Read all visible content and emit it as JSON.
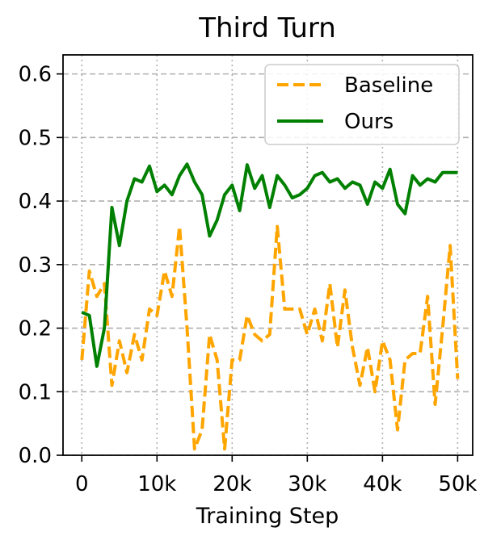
{
  "chart_data": {
    "type": "line",
    "title": "Third Turn",
    "xlabel": "Training Step",
    "ylabel": "",
    "xlim": [
      -2500,
      52000
    ],
    "ylim": [
      0.0,
      0.63
    ],
    "xticks": [
      0,
      10000,
      20000,
      30000,
      40000,
      50000
    ],
    "xtick_labels": [
      "0",
      "10k",
      "20k",
      "30k",
      "40k",
      "50k"
    ],
    "yticks": [
      0.0,
      0.1,
      0.2,
      0.3,
      0.4,
      0.5,
      0.6
    ],
    "ytick_labels": [
      "0.0",
      "0.1",
      "0.2",
      "0.3",
      "0.4",
      "0.5",
      "0.6"
    ],
    "grid": {
      "y": "dashed",
      "x": "dotted"
    },
    "legend": {
      "placement": "top-right"
    },
    "x": [
      0,
      1000,
      2000,
      3000,
      4000,
      5000,
      6000,
      7000,
      8000,
      9000,
      10000,
      11000,
      12000,
      13000,
      14000,
      15000,
      16000,
      17000,
      18000,
      19000,
      20000,
      21000,
      22000,
      23000,
      24000,
      25000,
      26000,
      27000,
      28000,
      29000,
      30000,
      31000,
      32000,
      33000,
      34000,
      35000,
      36000,
      37000,
      38000,
      39000,
      40000,
      41000,
      42000,
      43000,
      44000,
      45000,
      46000,
      47000,
      48000,
      49000,
      50000
    ],
    "series": [
      {
        "name": "Baseline",
        "style": "dashed",
        "color": "#FFA500",
        "values": [
          0.15,
          0.29,
          0.25,
          0.27,
          0.11,
          0.18,
          0.13,
          0.19,
          0.15,
          0.23,
          0.22,
          0.29,
          0.25,
          0.36,
          0.2,
          0.01,
          0.04,
          0.19,
          0.15,
          0.01,
          0.15,
          0.15,
          0.22,
          0.19,
          0.18,
          0.19,
          0.36,
          0.23,
          0.23,
          0.23,
          0.19,
          0.23,
          0.18,
          0.27,
          0.17,
          0.26,
          0.17,
          0.11,
          0.17,
          0.1,
          0.18,
          0.15,
          0.04,
          0.15,
          0.16,
          0.16,
          0.25,
          0.08,
          0.2,
          0.33,
          0.12
        ]
      },
      {
        "name": "Ours",
        "style": "solid",
        "color": "#008000",
        "values": [
          0.225,
          0.22,
          0.14,
          0.2,
          0.39,
          0.33,
          0.4,
          0.435,
          0.43,
          0.455,
          0.415,
          0.425,
          0.41,
          0.44,
          0.458,
          0.43,
          0.41,
          0.345,
          0.37,
          0.41,
          0.425,
          0.385,
          0.457,
          0.42,
          0.44,
          0.39,
          0.44,
          0.425,
          0.405,
          0.41,
          0.42,
          0.44,
          0.445,
          0.43,
          0.435,
          0.42,
          0.43,
          0.425,
          0.395,
          0.43,
          0.42,
          0.45,
          0.395,
          0.38,
          0.44,
          0.425,
          0.435,
          0.43,
          0.445,
          0.445,
          0.445
        ]
      }
    ]
  }
}
